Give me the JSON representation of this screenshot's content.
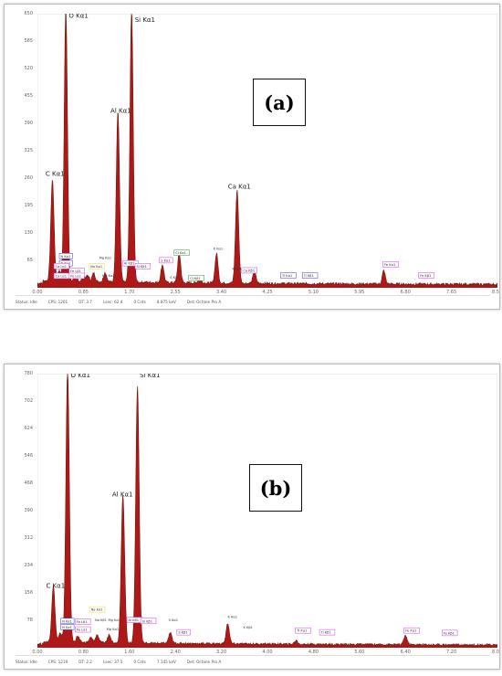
{
  "chart_data": [
    {
      "type": "area",
      "panel": "(a)",
      "x_ticks": [
        "0.00",
        "0.85",
        "1.70",
        "2.55",
        "3.40",
        "4.25",
        "5.10",
        "5.95",
        "6.80",
        "7.65",
        "8.5"
      ],
      "y_ticks": [
        "65",
        "130",
        "195",
        "260",
        "325",
        "390",
        "455",
        "520",
        "585",
        "650"
      ],
      "xlim": [
        0,
        8.5
      ],
      "ylim": [
        0,
        650
      ],
      "peaks": [
        {
          "label": "C Kα1",
          "x": 0.277,
          "y": 240
        },
        {
          "label": "O Kα1",
          "x": 0.525,
          "y": 650
        },
        {
          "label": "Al Kα1",
          "x": 1.487,
          "y": 405
        },
        {
          "label": "Si Kα1",
          "x": 1.74,
          "y": 650
        },
        {
          "label": "Ca Kα1",
          "x": 3.69,
          "y": 220
        }
      ],
      "minor_peaks": [
        {
          "x": 0.4,
          "y": 25
        },
        {
          "x": 0.7,
          "y": 18
        },
        {
          "x": 0.93,
          "y": 14
        },
        {
          "x": 1.04,
          "y": 20
        },
        {
          "x": 1.25,
          "y": 22
        },
        {
          "x": 2.31,
          "y": 42
        },
        {
          "x": 2.62,
          "y": 70
        },
        {
          "x": 3.31,
          "y": 70
        },
        {
          "x": 4.01,
          "y": 28
        },
        {
          "x": 6.4,
          "y": 32
        },
        {
          "x": 0.85,
          "y": 12
        },
        {
          "x": 3.0,
          "y": 12
        }
      ],
      "annotations": [
        {
          "text": "C Kα1",
          "x": 0.15,
          "y": 265,
          "style": "large"
        },
        {
          "text": "O Kα1",
          "x": 0.58,
          "y": 640,
          "style": "large"
        },
        {
          "text": "Si Kα1",
          "x": 1.8,
          "y": 630,
          "style": "large"
        },
        {
          "text": "Al Kα1",
          "x": 1.35,
          "y": 415,
          "style": "large"
        },
        {
          "text": "Ca Kα1",
          "x": 3.52,
          "y": 235,
          "style": "large"
        },
        {
          "text": "K Kα1",
          "x": 3.25,
          "y": 90,
          "style": "small"
        },
        {
          "text": "S Kα1",
          "x": 2.28,
          "y": 62,
          "style": "small",
          "box": "#d63adf"
        },
        {
          "text": "Cl Kα1",
          "x": 2.55,
          "y": 80,
          "style": "small",
          "box": "#2f9a3a"
        },
        {
          "text": "Mg Kα1",
          "x": 1.14,
          "y": 68,
          "style": "small"
        },
        {
          "text": "Na Kα1",
          "x": 0.98,
          "y": 48,
          "style": "small",
          "box": "#e8d830"
        },
        {
          "text": "Mg Kα1",
          "x": 1.2,
          "y": 26,
          "style": "small"
        },
        {
          "text": "Ca Kβ1",
          "x": 3.8,
          "y": 38,
          "style": "small",
          "box": "#d63adf"
        },
        {
          "text": "Ti Kα1",
          "x": 4.52,
          "y": 26,
          "style": "small",
          "box": "#3b3bd6"
        },
        {
          "text": "Ti Kβ1",
          "x": 4.92,
          "y": 26,
          "style": "small",
          "box": "#3b3bd6"
        },
        {
          "text": "Fe Kα1",
          "x": 6.41,
          "y": 52,
          "style": "small",
          "box": "#d63adf"
        },
        {
          "text": "Fe Kβ1",
          "x": 7.07,
          "y": 26,
          "style": "small",
          "box": "#d63adf"
        },
        {
          "text": "N Kα1",
          "x": 0.43,
          "y": 72,
          "style": "small",
          "box": "#3b3bd6"
        },
        {
          "text": "N Kα1",
          "x": 0.43,
          "y": 55,
          "style": "small",
          "box": "#3b3bd6"
        },
        {
          "text": "Fe Lβ1",
          "x": 0.61,
          "y": 37,
          "style": "small",
          "box": "#d63adf"
        },
        {
          "text": "Fe Lα1",
          "x": 0.61,
          "y": 25,
          "style": "small",
          "box": "#d63adf"
        },
        {
          "text": "Ca Lα1",
          "x": 0.33,
          "y": 48,
          "style": "small",
          "box": "#d63adf"
        },
        {
          "text": "Ca Lα1",
          "x": 0.33,
          "y": 25,
          "style": "small",
          "box": "#d63adf"
        },
        {
          "text": "Al Kβ1",
          "x": 1.6,
          "y": 55,
          "style": "small",
          "box": "#d63adf"
        },
        {
          "text": "Si Kβ1",
          "x": 1.83,
          "y": 48,
          "style": "small",
          "box": "#d63adf"
        },
        {
          "text": "Cl Kβ1",
          "x": 2.82,
          "y": 20,
          "style": "small",
          "box": "#2f9a3a"
        },
        {
          "text": "S Kβ1",
          "x": 2.45,
          "y": 22,
          "style": "small"
        },
        {
          "text": "K Kβ1",
          "x": 3.6,
          "y": 42,
          "style": "small"
        }
      ]
    },
    {
      "type": "area",
      "panel": "(b)",
      "x_ticks": [
        "0.00",
        "0.80",
        "1.60",
        "2.40",
        "3.20",
        "4.00",
        "4.80",
        "5.60",
        "6.40",
        "7.20",
        "8.0"
      ],
      "y_ticks": [
        "78",
        "156",
        "234",
        "312",
        "390",
        "468",
        "546",
        "624",
        "702",
        "780"
      ],
      "xlim": [
        0,
        8.0
      ],
      "ylim": [
        0,
        780
      ],
      "peaks": [
        {
          "label": "C Kα1",
          "x": 0.277,
          "y": 160
        },
        {
          "label": "O Kα1",
          "x": 0.525,
          "y": 780
        },
        {
          "label": "Al Kα1",
          "x": 1.487,
          "y": 420
        },
        {
          "label": "Si Kα1",
          "x": 1.74,
          "y": 730
        }
      ],
      "minor_peaks": [
        {
          "x": 0.4,
          "y": 25
        },
        {
          "x": 0.7,
          "y": 18
        },
        {
          "x": 0.93,
          "y": 14
        },
        {
          "x": 1.04,
          "y": 22
        },
        {
          "x": 1.25,
          "y": 24
        },
        {
          "x": 2.31,
          "y": 30
        },
        {
          "x": 3.31,
          "y": 58
        },
        {
          "x": 4.5,
          "y": 10
        },
        {
          "x": 6.4,
          "y": 26
        }
      ],
      "annotations": [
        {
          "text": "C Kα1",
          "x": 0.15,
          "y": 170,
          "style": "large"
        },
        {
          "text": "O Kα1",
          "x": 0.58,
          "y": 770,
          "style": "large"
        },
        {
          "text": "Si Kα1",
          "x": 1.78,
          "y": 770,
          "style": "large"
        },
        {
          "text": "Al Kα1",
          "x": 1.3,
          "y": 430,
          "style": "large"
        },
        {
          "text": "Na Kα1",
          "x": 0.93,
          "y": 105,
          "style": "small",
          "box": "#e8d830"
        },
        {
          "text": "Na Kβ1",
          "x": 1.0,
          "y": 75,
          "style": "small"
        },
        {
          "text": "Mg Kα1",
          "x": 1.23,
          "y": 75,
          "style": "small"
        },
        {
          "text": "Mg Kα1",
          "x": 1.2,
          "y": 50,
          "style": "small"
        },
        {
          "text": "S Kα1",
          "x": 2.28,
          "y": 75,
          "style": "small"
        },
        {
          "text": "S Kβ1",
          "x": 2.45,
          "y": 40,
          "style": "small",
          "box": "#d63adf"
        },
        {
          "text": "K Kα1",
          "x": 3.31,
          "y": 85,
          "style": "small"
        },
        {
          "text": "K Kβ1",
          "x": 3.58,
          "y": 55,
          "style": "small"
        },
        {
          "text": "Ti Kα1",
          "x": 4.51,
          "y": 45,
          "style": "small",
          "box": "#d63adf"
        },
        {
          "text": "Ti Kβ1",
          "x": 4.93,
          "y": 40,
          "style": "small",
          "box": "#d63adf"
        },
        {
          "text": "Fe Kα1",
          "x": 6.4,
          "y": 45,
          "style": "small",
          "box": "#d63adf"
        },
        {
          "text": "Fe Kβ1",
          "x": 7.06,
          "y": 38,
          "style": "small",
          "box": "#d63adf"
        },
        {
          "text": "N Kα1",
          "x": 0.43,
          "y": 72,
          "style": "small",
          "box": "#3b3bd6"
        },
        {
          "text": "N Kα1",
          "x": 0.43,
          "y": 55,
          "style": "small",
          "box": "#3b3bd6"
        },
        {
          "text": "Fe Lβ1",
          "x": 0.68,
          "y": 70,
          "style": "small",
          "box": "#d63adf"
        },
        {
          "text": "Fe Lα1",
          "x": 0.68,
          "y": 48,
          "style": "small",
          "box": "#d63adf"
        },
        {
          "text": "Al Kβ1",
          "x": 1.58,
          "y": 75,
          "style": "small",
          "box": "#d63adf"
        },
        {
          "text": "Si Kβ1",
          "x": 1.82,
          "y": 72,
          "style": "small",
          "box": "#d63adf"
        }
      ]
    }
  ],
  "panels": {
    "a": {
      "label": "(a)",
      "status": {
        "label": "Status: Idle",
        "cps": "CPS: 1201",
        "dt": "DT: 3.7",
        "lsec": "Lsec: 62.4",
        "cnts": "0 Cnts",
        "kev": "8.875 keV",
        "det": "Det: Octane Pro A"
      }
    },
    "b": {
      "label": "(b)",
      "status": {
        "label": "Status: Idle",
        "cps": "CPS: 1219",
        "dt": "DT: 2.2",
        "lsec": "Lsec: 37.5",
        "cnts": "0 Cnts",
        "kev": "7.145 keV",
        "det": "Det: Octane Pro A"
      }
    }
  },
  "colors": {
    "spectrum_fill": "#b01818",
    "spectrum_edge": "#6f1a10",
    "noise": "#d6a0a8",
    "axis": "#888888"
  }
}
